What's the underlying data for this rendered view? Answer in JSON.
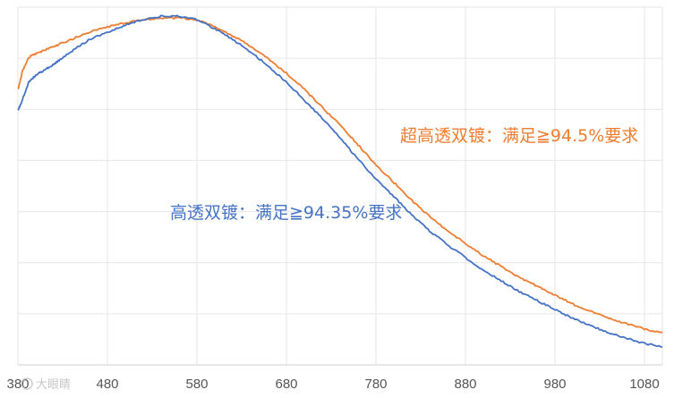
{
  "chart_data": {
    "type": "line",
    "title": "",
    "xlabel": "",
    "ylabel": "",
    "xlim": [
      380,
      1100
    ],
    "ylim": [
      0,
      100
    ],
    "x_ticks": [
      380,
      480,
      580,
      680,
      780,
      880,
      980,
      1080
    ],
    "grid": true,
    "legend": "none",
    "series": [
      {
        "color": "#ed7d31",
        "points": [
          [
            380,
            77
          ],
          [
            385,
            82
          ],
          [
            392,
            86
          ],
          [
            400,
            87
          ],
          [
            410,
            88
          ],
          [
            420,
            89
          ],
          [
            430,
            90
          ],
          [
            445,
            91.5
          ],
          [
            460,
            93
          ],
          [
            480,
            94.5
          ],
          [
            500,
            95.5
          ],
          [
            520,
            96.5
          ],
          [
            540,
            97
          ],
          [
            560,
            97
          ],
          [
            580,
            96.5
          ],
          [
            600,
            94.5
          ],
          [
            620,
            92
          ],
          [
            640,
            89
          ],
          [
            660,
            85.5
          ],
          [
            680,
            81.5
          ],
          [
            700,
            77
          ],
          [
            720,
            72
          ],
          [
            740,
            67
          ],
          [
            760,
            61.5
          ],
          [
            780,
            56
          ],
          [
            800,
            51
          ],
          [
            820,
            46
          ],
          [
            840,
            41.5
          ],
          [
            860,
            37.5
          ],
          [
            880,
            34
          ],
          [
            900,
            30.5
          ],
          [
            920,
            27.5
          ],
          [
            940,
            24.5
          ],
          [
            960,
            22
          ],
          [
            980,
            19.5
          ],
          [
            1000,
            17
          ],
          [
            1020,
            15
          ],
          [
            1040,
            13
          ],
          [
            1060,
            11.5
          ],
          [
            1080,
            10
          ],
          [
            1100,
            9
          ]
        ]
      },
      {
        "color": "#4472c4",
        "points": [
          [
            380,
            71
          ],
          [
            385,
            74
          ],
          [
            392,
            79
          ],
          [
            400,
            81
          ],
          [
            410,
            82.5
          ],
          [
            420,
            84
          ],
          [
            430,
            86
          ],
          [
            445,
            88.5
          ],
          [
            460,
            91
          ],
          [
            480,
            93
          ],
          [
            500,
            95
          ],
          [
            520,
            96.5
          ],
          [
            540,
            97.5
          ],
          [
            560,
            97.5
          ],
          [
            580,
            96.5
          ],
          [
            600,
            94
          ],
          [
            620,
            91
          ],
          [
            640,
            87.5
          ],
          [
            660,
            83.5
          ],
          [
            680,
            79
          ],
          [
            700,
            74
          ],
          [
            720,
            69
          ],
          [
            740,
            63.5
          ],
          [
            760,
            57.5
          ],
          [
            780,
            52
          ],
          [
            800,
            47
          ],
          [
            820,
            42
          ],
          [
            840,
            37.5
          ],
          [
            860,
            33.5
          ],
          [
            880,
            30
          ],
          [
            900,
            26.5
          ],
          [
            920,
            23.5
          ],
          [
            940,
            20.5
          ],
          [
            960,
            18
          ],
          [
            980,
            15.5
          ],
          [
            1000,
            13
          ],
          [
            1020,
            11
          ],
          [
            1040,
            9
          ],
          [
            1060,
            7.5
          ],
          [
            1080,
            6
          ],
          [
            1100,
            5
          ]
        ]
      }
    ],
    "annotations": [
      {
        "text": "超高透双镀：满足≧94.5%要求",
        "color": "#ed7d31"
      },
      {
        "text": "高透双镀：满足≧94.35%要求",
        "color": "#4472c4"
      }
    ]
  },
  "watermark": "大眼睛"
}
